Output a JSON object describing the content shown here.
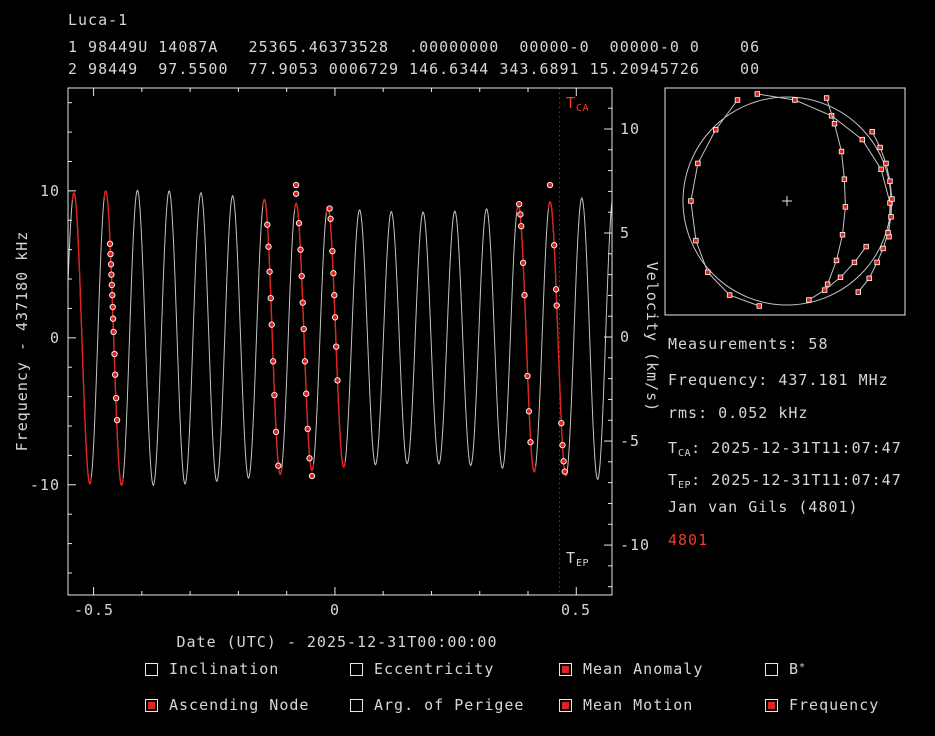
{
  "colors": {
    "bg": "#000000",
    "fg": "#d6d6d6",
    "frame": "#e9e9e9",
    "curve": "#c4c4c4",
    "red": "#e0241c",
    "red_text": "#ef3b30",
    "marker_stroke": "#ffffff"
  },
  "header": {
    "satellite_name": "Luca-1",
    "tle_line1": "1 98449U 14087A   25365.46373528  .00000000  00000-0  00000-0 0    06",
    "tle_line2": "2 98449  97.5500  77.9053 0006729 146.6344 343.6891 15.20945726    00"
  },
  "plot": {
    "xlabel": "Date (UTC) - 2025-12-31T00:00:00",
    "ylabel_left": "Frequency - 437180 kHz",
    "ylabel_right": "Velocity (km/s)",
    "x_tick_labels": [
      "-0.5",
      "0",
      "0.5"
    ],
    "freq_tick_labels": [
      "10",
      "0",
      "-10"
    ],
    "velocity_tick_labels": [
      "10",
      "5",
      "0",
      "-5",
      "-10"
    ],
    "tca_marker": {
      "t": "T",
      "sub": "CA"
    },
    "tep_marker": {
      "t": "T",
      "sub": "EP"
    }
  },
  "chart_data": {
    "type": "line",
    "description": "Doppler frequency model curve (white) vs time in days around epoch; red segments and points are observed passes; vertical dotted red line marks time of closest approach",
    "x_range": [
      -0.553,
      0.574
    ],
    "y_range_khz": [
      -17.5,
      17.0
    ],
    "velocity_range_kms": [
      -12.4,
      11.97
    ],
    "x_ticks": [
      -0.5,
      0,
      0.5
    ],
    "x_ticks_minor": [
      -0.4,
      -0.3,
      -0.2,
      -0.1,
      0.1,
      0.2,
      0.3,
      0.4
    ],
    "freq_ticks": [
      -10,
      0,
      10
    ],
    "freq_ticks_minor": [
      -16,
      -14,
      -12,
      -8,
      -6,
      -4,
      -2,
      2,
      4,
      6,
      8,
      12,
      14,
      16
    ],
    "velocity_ticks": [
      -10,
      -5,
      0,
      5,
      10
    ],
    "velocity_ticks_minor": [
      -12,
      -11,
      -9,
      -8,
      -7,
      -6,
      -4,
      -3,
      -2,
      -1,
      1,
      2,
      3,
      4,
      6,
      7,
      8,
      9,
      11
    ],
    "model": {
      "period_days": 0.06575,
      "phase_rad": 2.97,
      "amplitude_khz": 9.3,
      "amp_mod": {
        "frac": 0.08,
        "center": 0.17,
        "period_days": 1.15
      }
    },
    "descending_zero_t0": 0.462,
    "red_passes": [
      -15,
      -14,
      -9,
      -8,
      -7,
      -1,
      0
    ],
    "tca_t": 0.4655,
    "clusters": [
      {
        "t0": -0.458,
        "f": [
          6.4,
          5.7,
          5.0,
          4.3,
          3.6,
          2.9,
          2.1,
          1.3,
          0.4,
          -1.1,
          -2.5,
          -4.1,
          -5.6
        ]
      },
      {
        "t0": -0.13,
        "f": [
          7.7,
          6.2,
          4.5,
          2.7,
          0.9,
          -1.6,
          -3.9,
          -6.4,
          -8.7
        ]
      },
      {
        "t0": -0.064,
        "f": [
          10.4,
          9.8,
          7.8,
          6.0,
          4.2,
          2.4,
          0.6,
          -1.6,
          -3.8,
          -6.2,
          -8.2,
          -9.4
        ]
      },
      {
        "t0": 0.002,
        "f": [
          8.8,
          8.1,
          5.9,
          4.4,
          2.9,
          1.4,
          -0.6,
          -2.9
        ]
      },
      {
        "t0": 0.396,
        "f": [
          9.1,
          8.4,
          7.6,
          5.1,
          2.9,
          -2.6,
          -5.0,
          -7.1
        ]
      },
      {
        "t0": 0.462,
        "f": [
          10.4,
          6.3,
          3.3,
          2.2,
          -5.8,
          -7.3,
          -8.4,
          -9.1
        ]
      }
    ]
  },
  "sky_map": {
    "description": "All-sky view of observed passes with measurement markers; plus sign marks zenith",
    "tracks": [
      [
        [
          -50,
          -102
        ],
        [
          -72,
          -72
        ],
        [
          -90,
          -38
        ],
        [
          -97,
          0
        ],
        [
          -92,
          40
        ],
        [
          -80,
          72
        ],
        [
          -58,
          95
        ],
        [
          -28,
          106
        ]
      ],
      [
        [
          -30,
          -108
        ],
        [
          8,
          -102
        ],
        [
          45,
          -86
        ],
        [
          76,
          -62
        ],
        [
          95,
          -32
        ],
        [
          104,
          2
        ],
        [
          103,
          36
        ]
      ],
      [
        [
          86,
          -70
        ],
        [
          94,
          -54
        ],
        [
          100,
          -38
        ],
        [
          104,
          -20
        ],
        [
          106,
          -2
        ],
        [
          105,
          16
        ],
        [
          102,
          32
        ],
        [
          97,
          48
        ],
        [
          91,
          62
        ],
        [
          83,
          78
        ],
        [
          72,
          92
        ]
      ],
      [
        [
          40,
          -104
        ],
        [
          48,
          -78
        ],
        [
          55,
          -50
        ],
        [
          58,
          -22
        ],
        [
          59,
          6
        ],
        [
          56,
          34
        ],
        [
          50,
          60
        ],
        [
          41,
          84
        ]
      ],
      [
        [
          22,
          100
        ],
        [
          38,
          90
        ],
        [
          54,
          77
        ],
        [
          68,
          62
        ],
        [
          80,
          46
        ]
      ]
    ]
  },
  "info_panel": {
    "measurements": "Measurements: 58",
    "frequency": "Frequency: 437.181 MHz",
    "rms": "rms: 0.052 kHz",
    "tca": {
      "t": "T",
      "sub": "CA",
      "rest": ": 2025-12-31T11:07:47"
    },
    "tep": {
      "t": "T",
      "sub": "EP",
      "rest": ": 2025-12-31T11:07:47"
    },
    "observer": "Jan van Gils (4801)",
    "site_id": "4801"
  },
  "fit_toggles": [
    {
      "label": "Inclination",
      "sup": "",
      "checked": false
    },
    {
      "label": "Eccentricity",
      "sup": "",
      "checked": false
    },
    {
      "label": "Mean Anomaly",
      "sup": "",
      "checked": true
    },
    {
      "label": "B",
      "sup": "*",
      "checked": false
    },
    {
      "label": "Ascending Node",
      "sup": "",
      "checked": true
    },
    {
      "label": "Arg. of Perigee",
      "sup": "",
      "checked": false
    },
    {
      "label": "Mean Motion",
      "sup": "",
      "checked": true
    },
    {
      "label": "Frequency",
      "sup": "",
      "checked": true
    }
  ]
}
